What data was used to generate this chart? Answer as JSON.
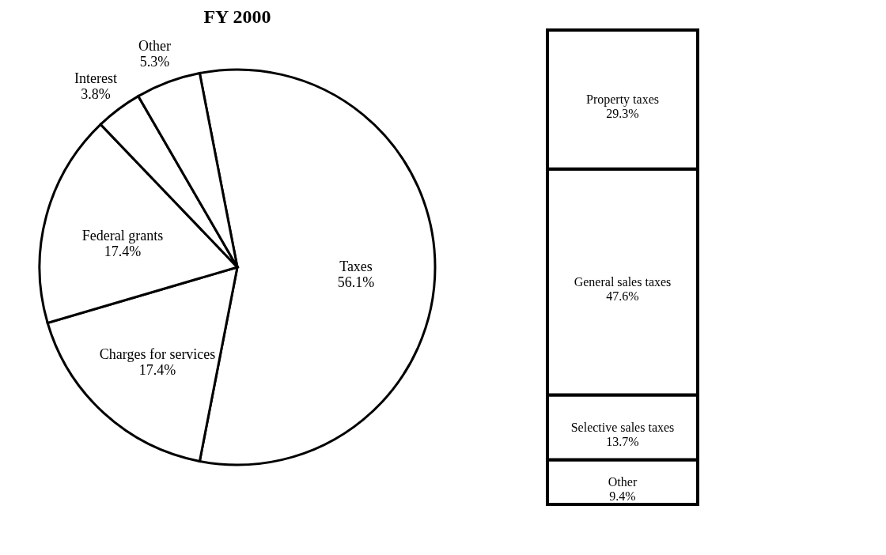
{
  "chart_data": [
    {
      "type": "pie",
      "title": "FY 2000",
      "categories": [
        "Taxes",
        "Charges for services",
        "Federal grants",
        "Interest",
        "Other"
      ],
      "values": [
        56.1,
        17.4,
        17.4,
        3.8,
        5.3
      ],
      "value_labels": [
        "56.1%",
        "17.4%",
        "17.4%",
        "3.8%",
        "5.3%"
      ],
      "colors": [
        "#ffffff",
        "#ffffff",
        "#ffffff",
        "#ffffff",
        "#ffffff"
      ],
      "legend": false
    },
    {
      "type": "bar",
      "stacked": true,
      "categories": [
        null
      ],
      "legend": false,
      "series": [
        {
          "name": "Other",
          "color": "#ffffff",
          "values": [
            9.4
          ],
          "value_labels": [
            "9.4%"
          ]
        },
        {
          "name": "Selective sales taxes",
          "color": "#ffffff",
          "values": [
            13.7
          ],
          "value_labels": [
            "13.7%"
          ]
        },
        {
          "name": "General sales taxes",
          "color": "#ffffff",
          "values": [
            47.6
          ],
          "value_labels": [
            "47.6%"
          ]
        },
        {
          "name": "Property taxes",
          "color": "#ffffff",
          "values": [
            29.3
          ],
          "value_labels": [
            "29.3%"
          ]
        }
      ]
    }
  ]
}
